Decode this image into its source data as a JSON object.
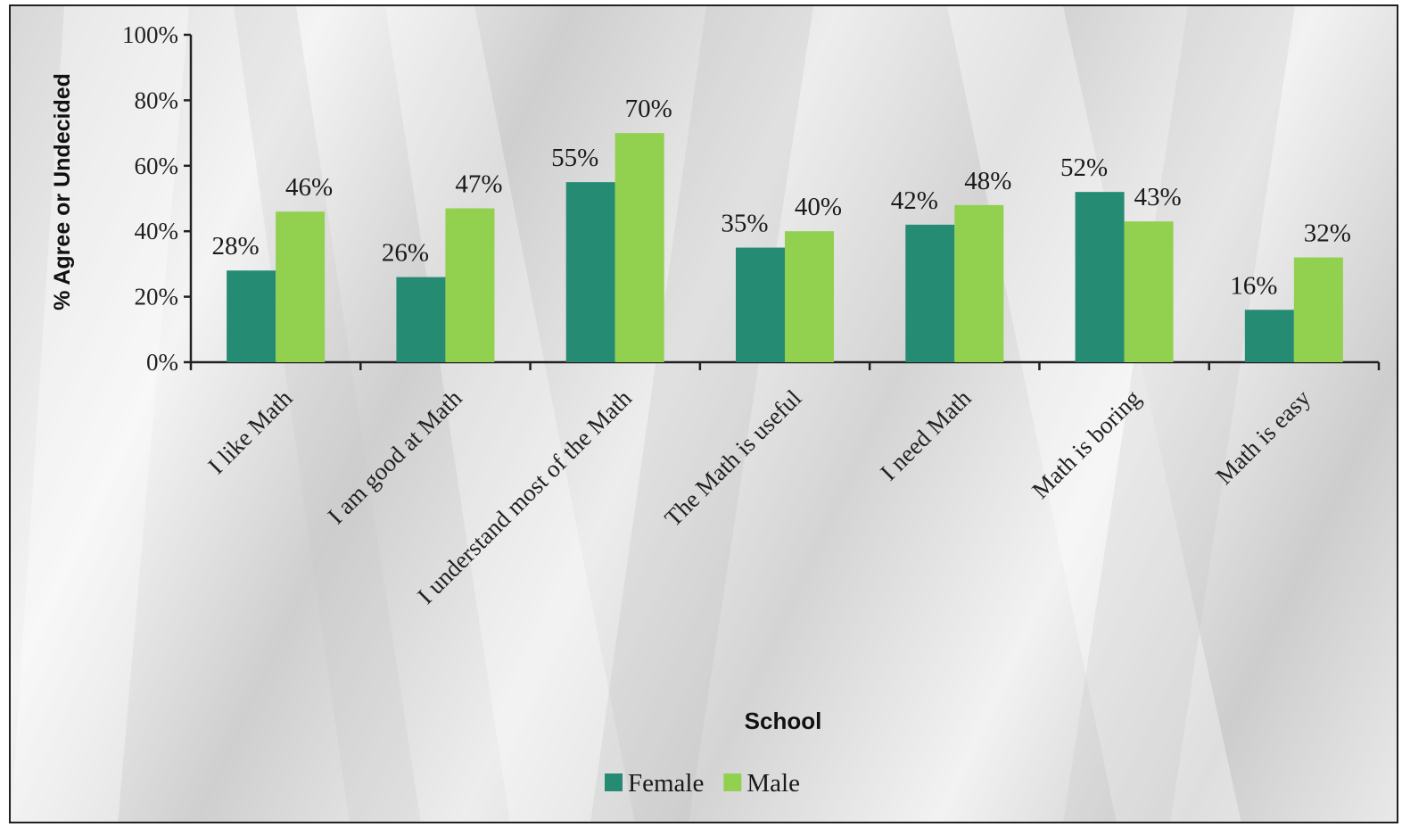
{
  "chart_data": {
    "type": "bar",
    "title": "",
    "xlabel": "School",
    "ylabel": "% Agree or Undecided",
    "ylim": [
      0,
      100
    ],
    "yticks": [
      "0%",
      "20%",
      "40%",
      "60%",
      "80%",
      "100%"
    ],
    "categories": [
      "I like Math",
      "I am good at Math",
      "I understand most of the Math",
      "The Math is useful",
      "I need Math",
      "Math is boring",
      "Math is easy"
    ],
    "series": [
      {
        "name": "Female",
        "color": "#268b73",
        "values": [
          28,
          26,
          55,
          35,
          42,
          52,
          16
        ],
        "labels": [
          "28%",
          "26%",
          "55%",
          "35%",
          "42%",
          "52%",
          "16%"
        ]
      },
      {
        "name": "Male",
        "color": "#92d050",
        "values": [
          46,
          47,
          70,
          40,
          48,
          43,
          32
        ],
        "labels": [
          "46%",
          "47%",
          "70%",
          "40%",
          "48%",
          "43%",
          "32%"
        ]
      }
    ],
    "grid": false,
    "legend": "bottom-center"
  }
}
